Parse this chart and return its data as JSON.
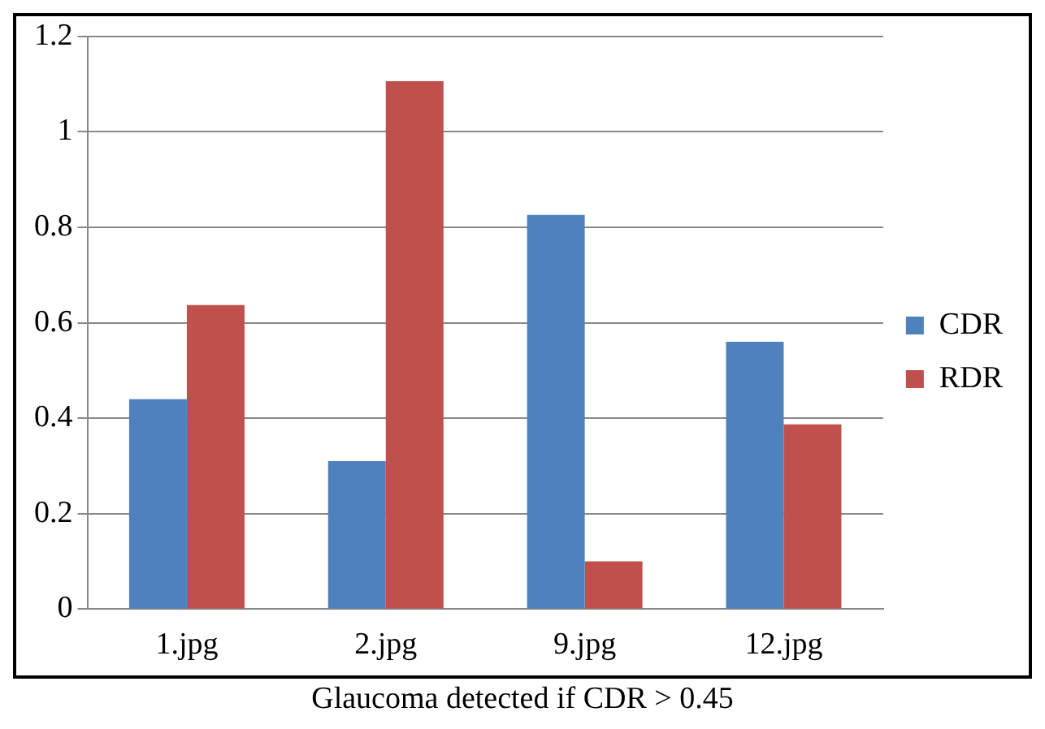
{
  "chart_data": {
    "type": "bar",
    "categories": [
      "1.jpg",
      "2.jpg",
      "9.jpg",
      "12.jpg"
    ],
    "series": [
      {
        "name": "CDR",
        "color": "#4f81bd",
        "values": [
          0.44,
          0.31,
          0.826,
          0.56
        ]
      },
      {
        "name": "RDR",
        "color": "#c0504d",
        "values": [
          0.637,
          1.106,
          0.1,
          0.387
        ]
      }
    ],
    "ylim": [
      0,
      1.2
    ],
    "yticks": [
      0,
      0.2,
      0.4,
      0.6,
      0.8,
      1,
      1.2
    ],
    "grid": "y",
    "legend": "right",
    "annotations": [
      "Glaucoma detected if CDR > 0.45"
    ]
  }
}
